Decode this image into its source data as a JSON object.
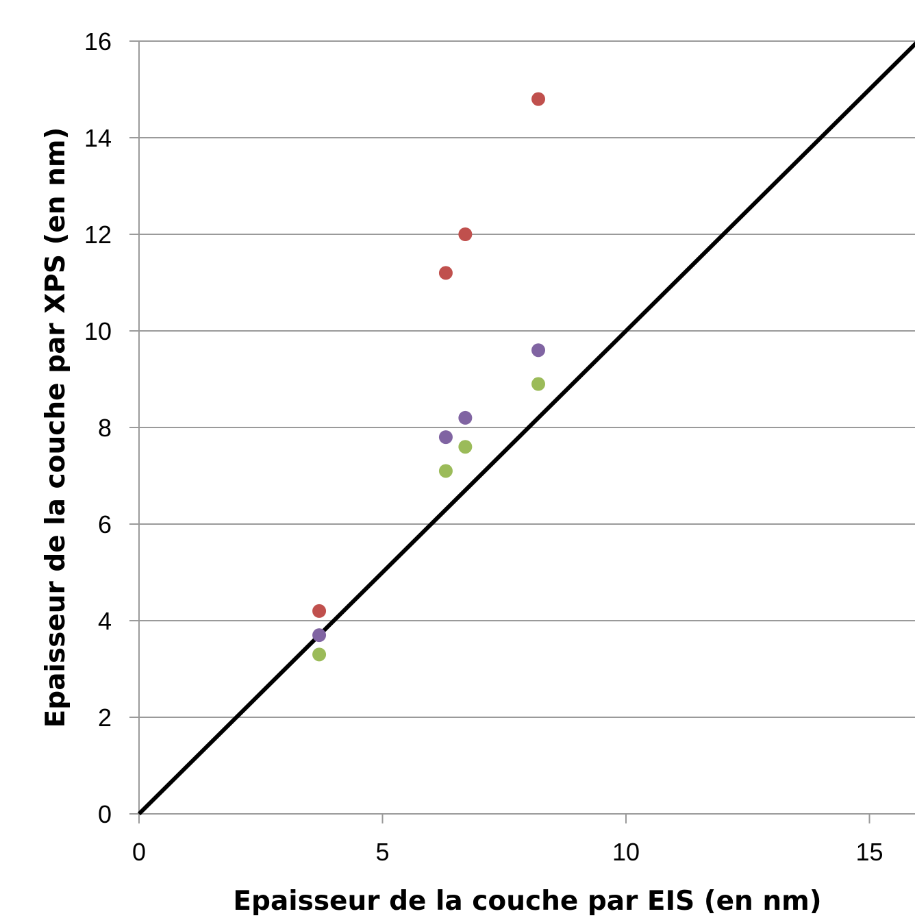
{
  "chart_data": {
    "type": "scatter",
    "title": "",
    "xlabel": "Epaisseur de la couche par EIS (en nm)",
    "ylabel": "Epaisseur de la couche par XPS  (en nm)",
    "xlim": [
      0,
      16
    ],
    "ylim": [
      0,
      16
    ],
    "x_ticks": [
      "0",
      "5",
      "10",
      "15"
    ],
    "y_ticks": [
      "0",
      "2",
      "4",
      "6",
      "8",
      "10",
      "12",
      "14",
      "16"
    ],
    "grid": "horizontal",
    "legend": "none",
    "series": [
      {
        "color": "#c0504d",
        "points": [
          [
            3.7,
            4.2
          ],
          [
            6.3,
            11.2
          ],
          [
            6.7,
            12.0
          ],
          [
            8.2,
            14.8
          ]
        ]
      },
      {
        "color": "#8064a2",
        "points": [
          [
            3.7,
            3.7
          ],
          [
            6.3,
            7.8
          ],
          [
            6.7,
            8.2
          ],
          [
            8.2,
            9.6
          ]
        ]
      },
      {
        "color": "#9bbb59",
        "points": [
          [
            3.7,
            3.3
          ],
          [
            6.3,
            7.1
          ],
          [
            6.7,
            7.6
          ],
          [
            8.2,
            8.9
          ]
        ]
      }
    ],
    "reference_line": {
      "type": "y=x",
      "color": "#000000",
      "from": [
        0,
        0
      ],
      "to": [
        16,
        16
      ]
    }
  }
}
